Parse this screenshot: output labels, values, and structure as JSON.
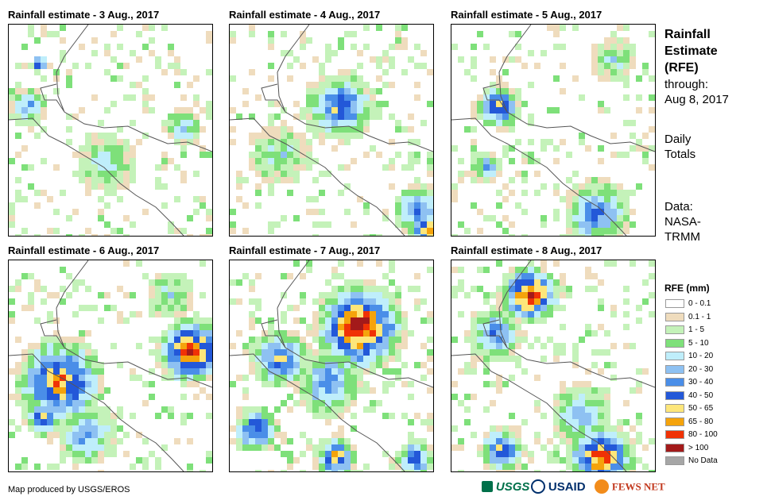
{
  "panels": [
    {
      "title": "Rainfall estimate - 3 Aug., 2017"
    },
    {
      "title": "Rainfall estimate - 4 Aug., 2017"
    },
    {
      "title": "Rainfall estimate - 5 Aug., 2017"
    },
    {
      "title": "Rainfall estimate - 6 Aug., 2017"
    },
    {
      "title": "Rainfall estimate - 7 Aug., 2017"
    },
    {
      "title": "Rainfall estimate - 8 Aug., 2017"
    }
  ],
  "side": {
    "title_line1": "Rainfall",
    "title_line2": "Estimate",
    "title_line3": "(RFE)",
    "through_label": "through:",
    "through_date": "Aug 8, 2017",
    "daily_line1": "Daily",
    "daily_line2": "Totals",
    "data_line1": "Data:",
    "data_line2": "NASA-",
    "data_line3": "TRMM"
  },
  "legend": {
    "title": "RFE (mm)",
    "items": [
      {
        "label": "0 - 0.1",
        "color": "#ffffff"
      },
      {
        "label": "0.1 - 1",
        "color": "#efdcbd"
      },
      {
        "label": "1 - 5",
        "color": "#c4f2b9"
      },
      {
        "label": "5 - 10",
        "color": "#7ee07a"
      },
      {
        "label": "10 - 20",
        "color": "#bfeefb"
      },
      {
        "label": "20 - 30",
        "color": "#8ec1f2"
      },
      {
        "label": "30 - 40",
        "color": "#4a8ee8"
      },
      {
        "label": "40 - 50",
        "color": "#2358d8"
      },
      {
        "label": "50 - 65",
        "color": "#fde67a"
      },
      {
        "label": "65 - 80",
        "color": "#f5a30b"
      },
      {
        "label": "80 - 100",
        "color": "#f03205"
      },
      {
        "label": "> 100",
        "color": "#a31a1a"
      },
      {
        "label": "No Data",
        "color": "#a6a6a6"
      }
    ]
  },
  "footer": {
    "credit": "Map produced by USGS/EROS",
    "logo_usgs": "USGS",
    "logo_usaid": "USAID",
    "logo_fews": "FEWS NET"
  }
}
